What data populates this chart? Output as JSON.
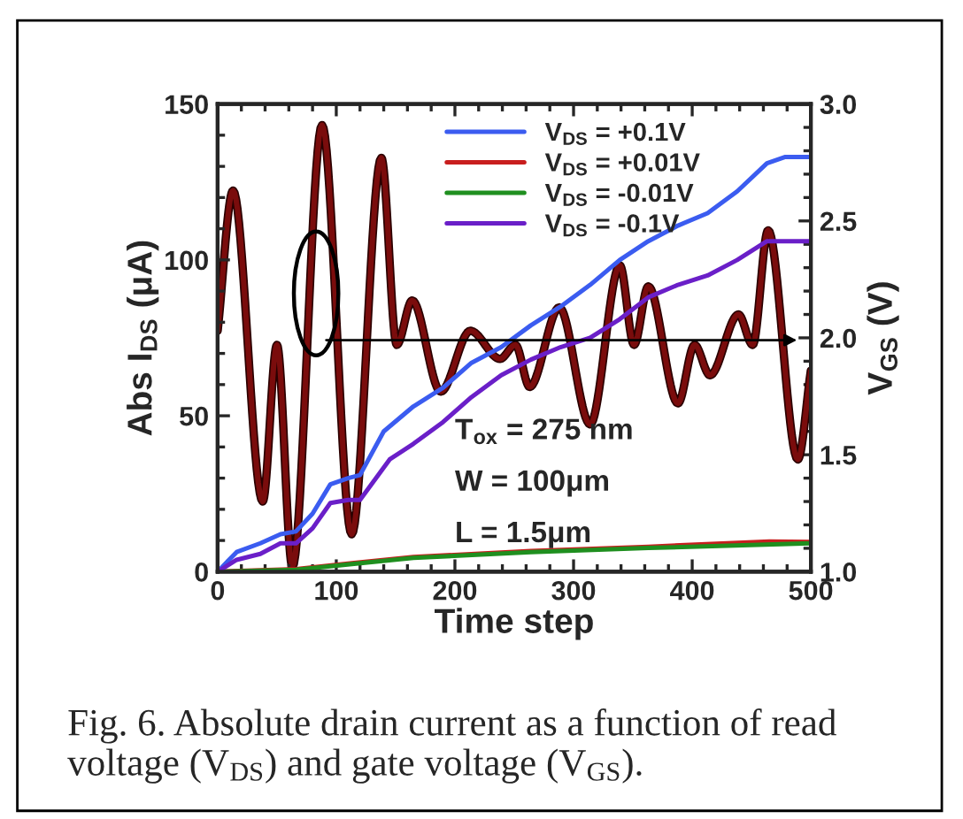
{
  "chart_data": {
    "type": "line",
    "xlabel": "Time step",
    "ylabel": "Abs I$_{DS}$ (μA)",
    "y2label": "V$_{GS}$ (V)",
    "annotations": [
      "T$_{ox}$ = 275 nm",
      "W = 100μm",
      "L = 1.5μm",
      "Fig. 6. Absolute drain current as a function of read voltage (V$_{DS}$) and gate voltage (V$_{GS}$)."
    ],
    "xlim": [
      0,
      500
    ],
    "xticks": [
      0,
      100,
      200,
      300,
      400,
      500
    ],
    "ylim": [
      0,
      150
    ],
    "yticks": [
      0,
      50,
      100,
      150
    ],
    "y2lim": [
      1.0,
      3.0
    ],
    "y2ticks": [
      {
        "value": 1.0,
        "label": "1.0"
      },
      {
        "value": 1.5,
        "label": "1.5"
      },
      {
        "value": 2.0,
        "label": "2.0"
      },
      {
        "value": 2.5,
        "label": "2.5"
      },
      {
        "value": 3.0,
        "label": "3.0"
      }
    ],
    "legend": "top",
    "marker": "none",
    "line_style": "solid",
    "series": [
      {
        "name": "V$_{DS}$ = +0.1V",
        "color": "#3b5cf0",
        "x": [
          0,
          16,
          36,
          53,
          66,
          80,
          95,
          110,
          120,
          140,
          165,
          190,
          214,
          239,
          264,
          289,
          314,
          339,
          363,
          388,
          413,
          438,
          463,
          478,
          500
        ],
        "values": [
          0,
          6.3,
          9.1,
          12,
          12.9,
          18.6,
          28,
          30,
          31,
          45,
          53,
          59,
          67,
          72,
          79,
          85,
          92,
          100,
          106,
          111,
          115,
          122,
          131,
          133,
          133
        ]
      },
      {
        "name": "V$_{DS}$ = +0.01V",
        "color": "#c81e1e",
        "x": [
          0,
          66,
          115,
          165,
          264,
          363,
          465,
          500
        ],
        "values": [
          0,
          0.8,
          2.8,
          4.7,
          6.6,
          8,
          9.7,
          9.5
        ]
      },
      {
        "name": "V$_{DS}$ = -0.01V",
        "color": "#1f8f1f",
        "x": [
          0,
          66,
          115,
          165,
          264,
          363,
          500
        ],
        "values": [
          0,
          0.6,
          2.5,
          4.4,
          6.3,
          7.6,
          9.1
        ]
      },
      {
        "name": "V$_{DS}$ = -0.1V",
        "color": "#6a1fc8",
        "x": [
          0,
          16,
          36,
          53,
          66,
          80,
          95,
          110,
          120,
          145,
          165,
          190,
          214,
          239,
          264,
          289,
          314,
          339,
          363,
          388,
          413,
          438,
          463,
          500
        ],
        "values": [
          0,
          3.8,
          5.7,
          9.1,
          9.1,
          13.9,
          22,
          23,
          23,
          36,
          41,
          48,
          56,
          63,
          68,
          72,
          75,
          81,
          88,
          92,
          95,
          100,
          106,
          106
        ]
      },
      {
        "axis": "y2",
        "color": "#7a0c0c",
        "x": [
          0,
          13,
          38,
          50,
          63,
          88,
          113,
          138,
          151,
          164,
          188,
          213,
          238,
          251,
          263,
          288,
          314,
          339,
          351,
          363,
          388,
          402,
          415,
          439,
          451,
          464,
          489,
          500
        ],
        "values": [
          2.03,
          2.63,
          1.3,
          1.97,
          1.02,
          2.91,
          1.16,
          2.77,
          1.97,
          2.16,
          1.77,
          2.03,
          1.91,
          1.97,
          1.79,
          2.13,
          1.63,
          2.31,
          1.97,
          2.22,
          1.72,
          1.97,
          1.84,
          2.1,
          1.97,
          2.46,
          1.48,
          1.86
        ]
      }
    ]
  }
}
